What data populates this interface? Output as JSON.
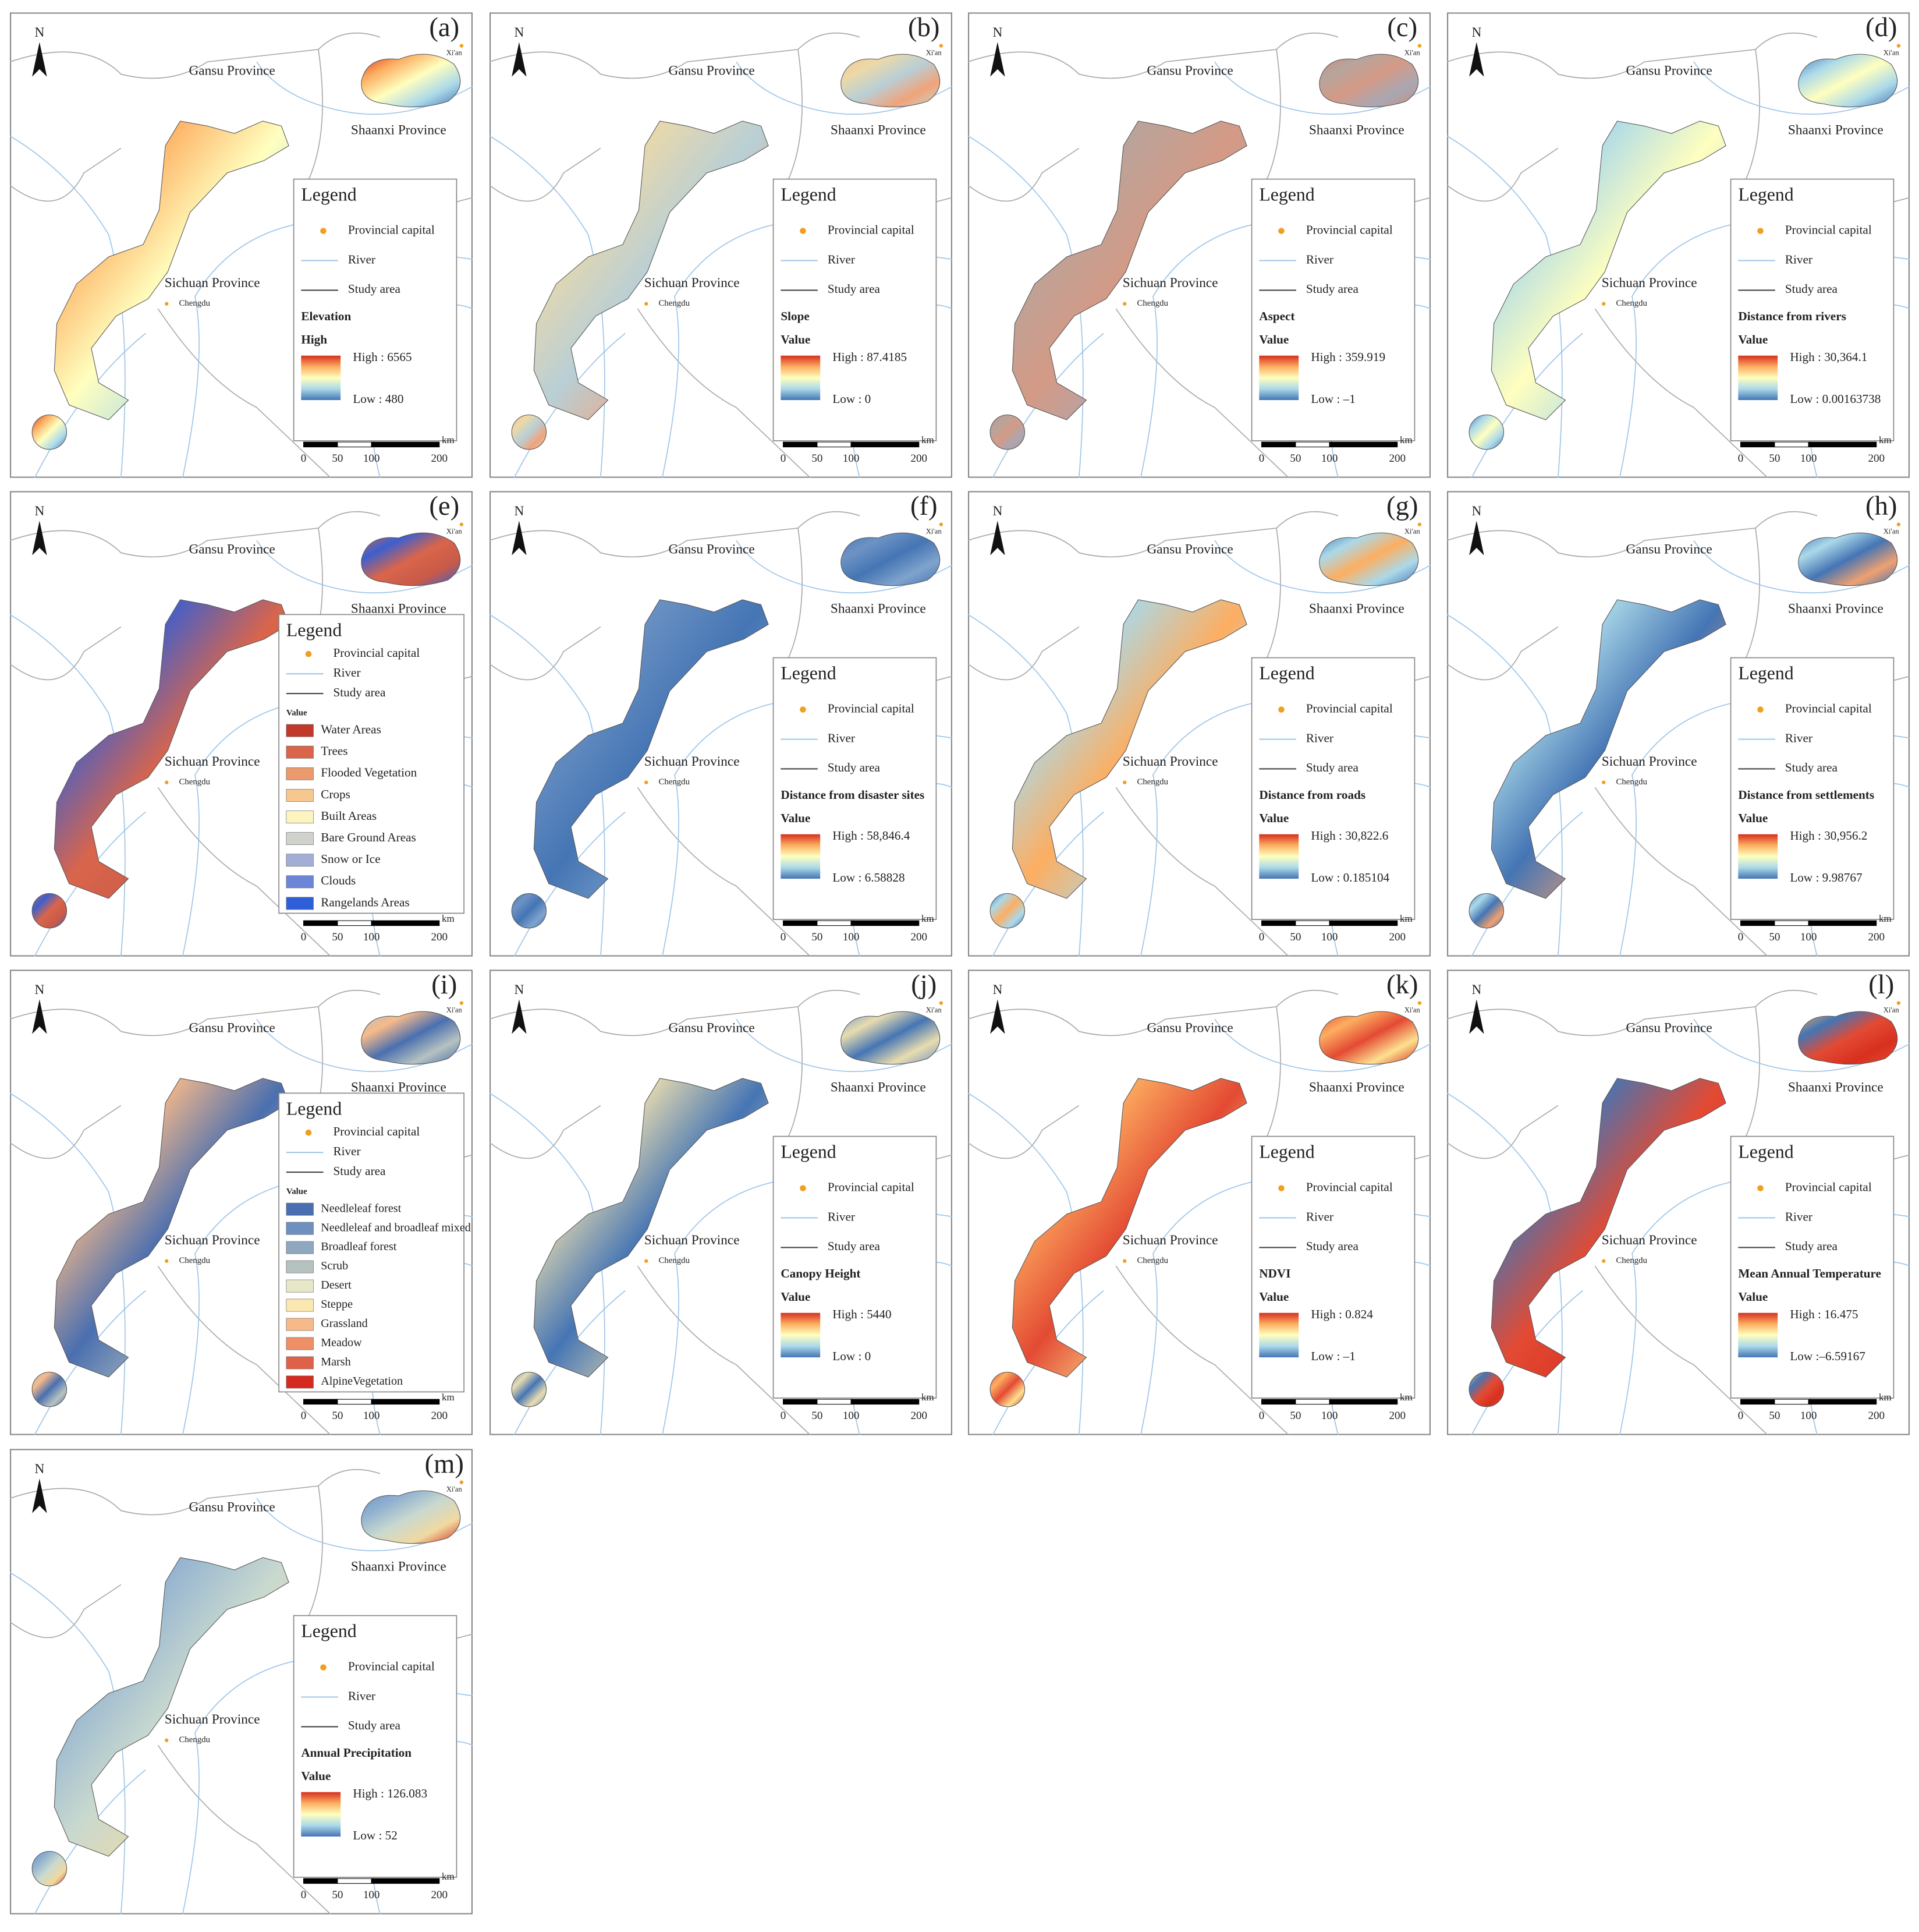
{
  "shared": {
    "north": "N",
    "places": {
      "gansu": "Gansu Province",
      "shaanxi": "Shaanxi Province",
      "sichuan": "Sichuan Province",
      "chengdu": "Chengdu",
      "xian": "Xi'an"
    },
    "legend_title": "Legend",
    "legend_items": [
      "Provincial capital",
      "River",
      "Study area"
    ],
    "scale_ticks": [
      "0",
      "50",
      "100",
      "200"
    ],
    "scale_unit": "km"
  },
  "panels": [
    {
      "label": "(a)",
      "legend_layer": "Elevation",
      "legend_value": "High",
      "high": "High : 6565",
      "low": "Low : 480",
      "ramp": [
        "#d7301f",
        "#fdae61",
        "#ffffbf",
        "#abd9e9",
        "#4575b4"
      ],
      "map_colors": [
        "#d7301f",
        "#fdae61",
        "#ffffbf",
        "#abd9e9",
        "#4575b4"
      ]
    },
    {
      "label": "(b)",
      "legend_layer": "Slope",
      "legend_value": "Value",
      "high": "High : 87.4185",
      "low": "Low : 0",
      "ramp": [
        "#d7301f",
        "#fdae61",
        "#ffffbf",
        "#abd9e9",
        "#4575b4"
      ],
      "map_colors": [
        "#f4c38d",
        "#ecd9a8",
        "#b9cfd6",
        "#f0a37a",
        "#c9d6c8"
      ]
    },
    {
      "label": "(c)",
      "legend_layer": "Aspect",
      "legend_value": "Value",
      "high": "High : 359.919",
      "low": "Low : –1",
      "ramp": [
        "#d7301f",
        "#fdae61",
        "#ffffbf",
        "#abd9e9",
        "#4575b4"
      ],
      "map_colors": [
        "#c98a7a",
        "#b7a49c",
        "#d49a86",
        "#a9a7b3",
        "#c7907d"
      ]
    },
    {
      "label": "(d)",
      "legend_layer": "Distance from rivers",
      "legend_value": "Value",
      "high": "High : 30,364.1",
      "low": "Low : 0.00163738",
      "ramp": [
        "#d7301f",
        "#fdae61",
        "#ffffbf",
        "#abd9e9",
        "#4575b4"
      ],
      "map_colors": [
        "#4575b4",
        "#abd9e9",
        "#ffffbf",
        "#abd9e9",
        "#4575b4"
      ]
    },
    {
      "label": "(e)",
      "legend_value": "Value",
      "classes": [
        {
          "name": "Water Areas",
          "color": "#c0392b"
        },
        {
          "name": "Trees",
          "color": "#d9654b"
        },
        {
          "name": "Flooded Vegetation",
          "color": "#eb9a6e"
        },
        {
          "name": "Crops",
          "color": "#f6c88f"
        },
        {
          "name": "Built Areas",
          "color": "#fdf5c0"
        },
        {
          "name": "Bare Ground Areas",
          "color": "#d0d3cc"
        },
        {
          "name": "Snow or Ice",
          "color": "#a3aed6"
        },
        {
          "name": "Clouds",
          "color": "#6b86d6"
        },
        {
          "name": "Rangelands Areas",
          "color": "#2f5fd8"
        }
      ],
      "map_colors": [
        "#d9654b",
        "#3b5fd0",
        "#d9654b",
        "#c85a48",
        "#3b5fd0"
      ]
    },
    {
      "label": "(f)",
      "legend_layer": "Distance from disaster sites",
      "legend_value": "Value",
      "high": "High : 58,846.4",
      "low": "Low : 6.58828",
      "ramp": [
        "#d7301f",
        "#fdae61",
        "#ffffbf",
        "#abd9e9",
        "#4575b4"
      ],
      "map_colors": [
        "#4575b4",
        "#6d93c4",
        "#4575b4",
        "#7fa3cc",
        "#4575b4"
      ]
    },
    {
      "label": "(g)",
      "legend_layer": "Distance from roads",
      "legend_value": "Value",
      "high": "High : 30,822.6",
      "low": "Low : 0.185104",
      "ramp": [
        "#d7301f",
        "#fdae61",
        "#ffffbf",
        "#abd9e9",
        "#4575b4"
      ],
      "map_colors": [
        "#4575b4",
        "#abd9e9",
        "#fdae61",
        "#abd9e9",
        "#4575b4"
      ]
    },
    {
      "label": "(h)",
      "legend_layer": "Distance from settlements",
      "legend_value": "Value",
      "high": "High : 30,956.2",
      "low": "Low : 9.98767",
      "ramp": [
        "#d7301f",
        "#fdae61",
        "#ffffbf",
        "#abd9e9",
        "#4575b4"
      ],
      "map_colors": [
        "#4575b4",
        "#abd9e9",
        "#4575b4",
        "#f0a070",
        "#4575b4"
      ]
    },
    {
      "label": "(i)",
      "legend_value": "Value",
      "classes": [
        {
          "name": "Needleleaf forest",
          "color": "#4a6fb0"
        },
        {
          "name": "Needleleaf and broadleaf mixed forest",
          "color": "#6f8fbf"
        },
        {
          "name": "Broadleaf forest",
          "color": "#8fa8c0"
        },
        {
          "name": "Scrub",
          "color": "#b6c2c0"
        },
        {
          "name": "Desert",
          "color": "#e6e8c8"
        },
        {
          "name": "Steppe",
          "color": "#fbe7b0"
        },
        {
          "name": "Grassland",
          "color": "#f6b98a"
        },
        {
          "name": "Meadow",
          "color": "#ee8f66"
        },
        {
          "name": "Marsh",
          "color": "#e0614a"
        },
        {
          "name": "AlpineVegetation",
          "color": "#d42a20"
        }
      ],
      "map_colors": [
        "#b6c2c0",
        "#f6b98a",
        "#4a6fb0",
        "#b6c2c0",
        "#4a6fb0"
      ]
    },
    {
      "label": "(j)",
      "legend_layer": "Canopy Height",
      "legend_value": "Value",
      "high": "High : 5440",
      "low": "Low : 0",
      "ramp": [
        "#d7301f",
        "#fdae61",
        "#ffffbf",
        "#abd9e9",
        "#4575b4"
      ],
      "map_colors": [
        "#6d93c4",
        "#e8dcb0",
        "#4575b4",
        "#e8dcb0",
        "#6d93c4"
      ]
    },
    {
      "label": "(k)",
      "legend_layer": "NDVI",
      "legend_value": "Value",
      "high": "High : 0.824",
      "low": "Low : –1",
      "ramp": [
        "#d7301f",
        "#fdae61",
        "#ffffbf",
        "#abd9e9",
        "#4575b4"
      ],
      "map_colors": [
        "#e34a33",
        "#fdae61",
        "#e34a33",
        "#fee090",
        "#d7301f"
      ]
    },
    {
      "label": "(l)",
      "legend_layer": "Mean Annual Temperature",
      "legend_value": "Value",
      "high": "High : 16.475",
      "low": "Low :–6.59167",
      "ramp": [
        "#d7301f",
        "#fdae61",
        "#ffffbf",
        "#abd9e9",
        "#4575b4"
      ],
      "map_colors": [
        "#fdae61",
        "#4575b4",
        "#e34a33",
        "#d7301f",
        "#e34a33"
      ]
    },
    {
      "label": "(m)",
      "legend_layer": "Annual Precipitation",
      "legend_value": "Value",
      "high": "High : 126.083",
      "low": "Low : 52",
      "ramp": [
        "#d7301f",
        "#fdae61",
        "#ffffbf",
        "#abd9e9",
        "#4575b4"
      ],
      "map_colors": [
        "#6d93c4",
        "#8fb0d0",
        "#c9d9cf",
        "#f0d9a0",
        "#d7301f"
      ]
    }
  ]
}
